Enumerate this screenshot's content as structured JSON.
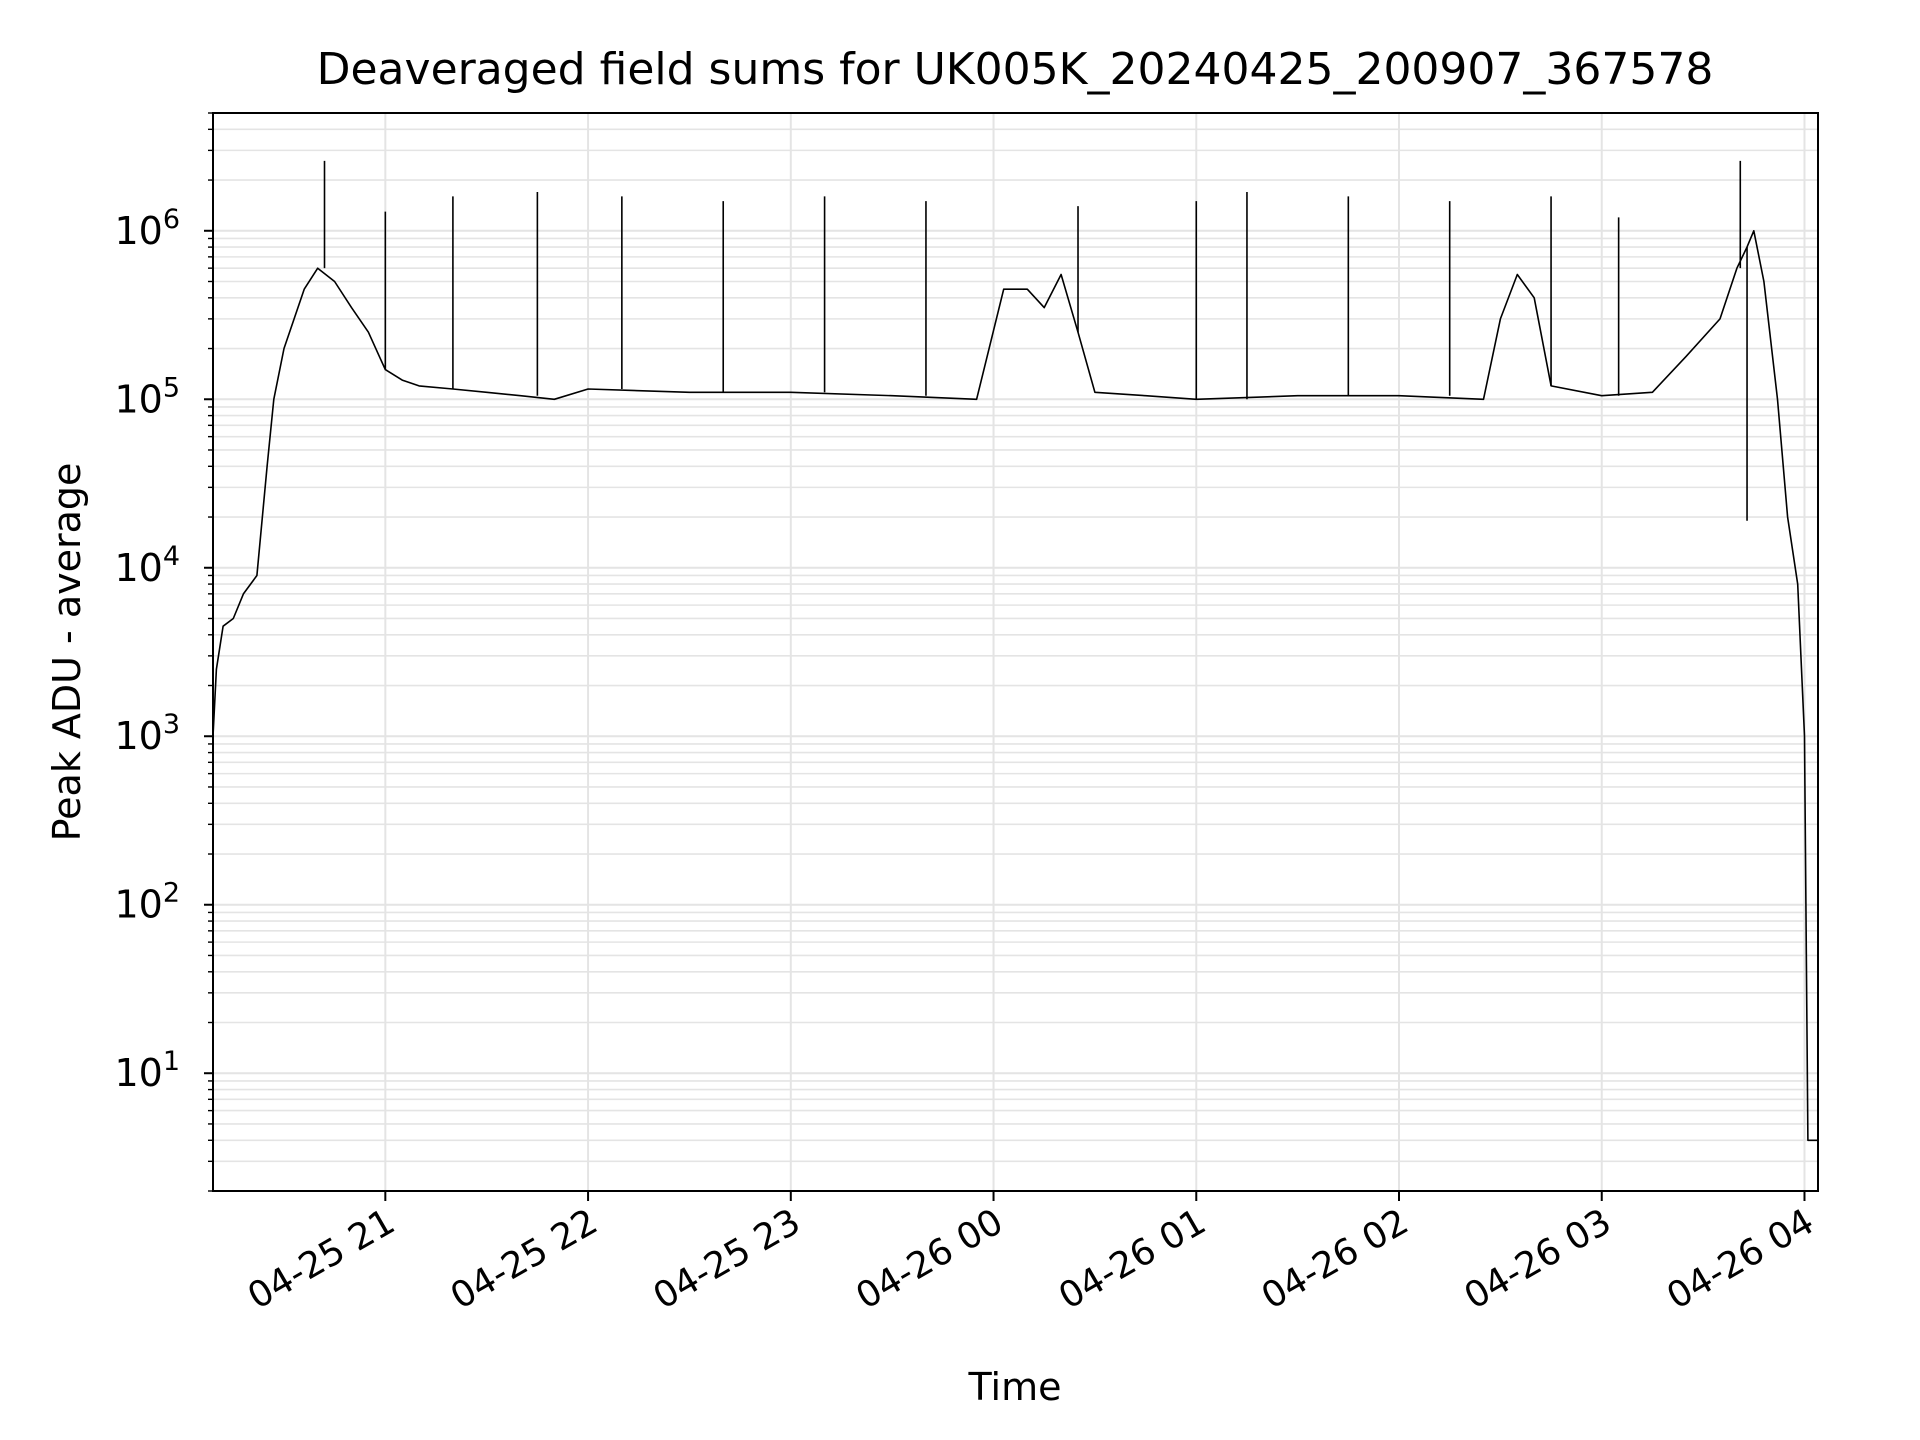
{
  "chart_data": {
    "type": "line",
    "title": "Deaveraged field sums for UK005K_20240425_200907_367578",
    "xlabel": "Time",
    "ylabel": "Peak ADU - average",
    "yscale": "log",
    "grid": true,
    "legend": "none",
    "xlim": [
      "2024-04-25 20:09",
      "2024-04-26 04:04"
    ],
    "ylim": [
      2,
      5000000
    ],
    "x_ticks": [
      "04-25 21",
      "04-25 22",
      "04-25 23",
      "04-26 00",
      "04-26 01",
      "04-26 02",
      "04-26 03",
      "04-26 04"
    ],
    "y_ticks": [
      {
        "base": "10",
        "exp": "1",
        "value": 10
      },
      {
        "base": "10",
        "exp": "2",
        "value": 100
      },
      {
        "base": "10",
        "exp": "3",
        "value": 1000
      },
      {
        "base": "10",
        "exp": "4",
        "value": 10000
      },
      {
        "base": "10",
        "exp": "5",
        "value": 100000
      },
      {
        "base": "10",
        "exp": "6",
        "value": 1000000
      }
    ],
    "series": [
      {
        "color": "#000000",
        "x": [
          "2024-04-25 20:09",
          "2024-04-25 20:10",
          "2024-04-25 20:12",
          "2024-04-25 20:15",
          "2024-04-25 20:18",
          "2024-04-25 20:22",
          "2024-04-25 20:25",
          "2024-04-25 20:27",
          "2024-04-25 20:30",
          "2024-04-25 20:33",
          "2024-04-25 20:36",
          "2024-04-25 20:40",
          "2024-04-25 20:45",
          "2024-04-25 20:50",
          "2024-04-25 20:55",
          "2024-04-25 21:00",
          "2024-04-25 21:05",
          "2024-04-25 21:10",
          "2024-04-25 21:20",
          "2024-04-25 21:30",
          "2024-04-25 21:40",
          "2024-04-25 21:50",
          "2024-04-25 22:00",
          "2024-04-25 22:30",
          "2024-04-25 23:00",
          "2024-04-25 23:30",
          "2024-04-25 23:55",
          "2024-04-26 00:03",
          "2024-04-26 00:10",
          "2024-04-26 00:15",
          "2024-04-26 00:20",
          "2024-04-26 00:25",
          "2024-04-26 00:30",
          "2024-04-26 00:45",
          "2024-04-26 01:00",
          "2024-04-26 01:30",
          "2024-04-26 02:00",
          "2024-04-26 02:25",
          "2024-04-26 02:30",
          "2024-04-26 02:35",
          "2024-04-26 02:40",
          "2024-04-26 02:45",
          "2024-04-26 03:00",
          "2024-04-26 03:15",
          "2024-04-26 03:25",
          "2024-04-26 03:35",
          "2024-04-26 03:40",
          "2024-04-26 03:43",
          "2024-04-26 03:45",
          "2024-04-26 03:48",
          "2024-04-26 03:52",
          "2024-04-26 03:55",
          "2024-04-26 03:58",
          "2024-04-26 04:00",
          "2024-04-26 04:01",
          "2024-04-26 04:04"
        ],
        "y": [
          1000,
          2500,
          4500,
          5000,
          7000,
          9000,
          40000,
          100000,
          200000,
          300000,
          450000,
          600000,
          500000,
          350000,
          250000,
          150000,
          130000,
          120000,
          115000,
          110000,
          105000,
          100000,
          115000,
          110000,
          110000,
          105000,
          100000,
          450000,
          450000,
          350000,
          550000,
          250000,
          110000,
          105000,
          100000,
          105000,
          105000,
          100000,
          300000,
          550000,
          400000,
          120000,
          105000,
          110000,
          180000,
          300000,
          600000,
          800000,
          1000000,
          500000,
          100000,
          20000,
          8000,
          1000,
          4,
          4
        ],
        "spikes": [
          {
            "x": "2024-04-25 20:42",
            "y": 2600000
          },
          {
            "x": "2024-04-25 21:00",
            "y": 1300000
          },
          {
            "x": "2024-04-25 21:20",
            "y": 1600000
          },
          {
            "x": "2024-04-25 21:45",
            "y": 1700000
          },
          {
            "x": "2024-04-25 22:10",
            "y": 1600000
          },
          {
            "x": "2024-04-25 22:40",
            "y": 1500000
          },
          {
            "x": "2024-04-25 23:10",
            "y": 1600000
          },
          {
            "x": "2024-04-25 23:40",
            "y": 1500000
          },
          {
            "x": "2024-04-26 00:25",
            "y": 1400000
          },
          {
            "x": "2024-04-26 01:00",
            "y": 1500000
          },
          {
            "x": "2024-04-26 01:15",
            "y": 1700000
          },
          {
            "x": "2024-04-26 01:45",
            "y": 1600000
          },
          {
            "x": "2024-04-26 02:15",
            "y": 1500000
          },
          {
            "x": "2024-04-26 02:45",
            "y": 1600000
          },
          {
            "x": "2024-04-26 03:05",
            "y": 1200000
          },
          {
            "x": "2024-04-26 03:41",
            "y": 2600000
          },
          {
            "x": "2024-04-26 03:43",
            "y": 19000
          }
        ]
      }
    ]
  }
}
